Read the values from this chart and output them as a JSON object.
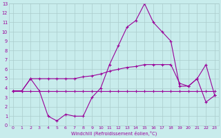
{
  "x": [
    0,
    1,
    2,
    3,
    4,
    5,
    6,
    7,
    8,
    9,
    10,
    11,
    12,
    13,
    14,
    15,
    16,
    17,
    18,
    19,
    20,
    21,
    22,
    23
  ],
  "line1": [
    3.7,
    3.7,
    5.0,
    3.7,
    1.0,
    0.5,
    1.2,
    1.0,
    1.0,
    3.0,
    4.0,
    6.5,
    8.5,
    10.5,
    11.2,
    13.0,
    11.0,
    10.0,
    9.0,
    4.2,
    4.2,
    5.0,
    2.5,
    3.2
  ],
  "line2": [
    3.7,
    3.7,
    5.0,
    5.0,
    5.0,
    5.0,
    5.0,
    5.0,
    5.2,
    5.3,
    5.5,
    5.8,
    6.0,
    6.2,
    6.3,
    6.5,
    6.5,
    6.5,
    6.5,
    4.5,
    4.2,
    5.0,
    6.5,
    3.2
  ],
  "line3": [
    3.7,
    3.7,
    3.7,
    3.7,
    3.7,
    3.7,
    3.7,
    3.7,
    3.7,
    3.7,
    3.7,
    3.7,
    3.7,
    3.7,
    3.7,
    3.7,
    3.7,
    3.7,
    3.7,
    3.7,
    3.7,
    3.7,
    3.7,
    3.7
  ],
  "line_color": "#990099",
  "bg_color": "#c8ecec",
  "grid_color": "#aacccc",
  "xlabel": "Windchill (Refroidissement éolien,°C)",
  "ylim": [
    0,
    13
  ],
  "xlim": [
    -0.5,
    23.5
  ],
  "yticks": [
    0,
    1,
    2,
    3,
    4,
    5,
    6,
    7,
    8,
    9,
    10,
    11,
    12,
    13
  ],
  "xticks": [
    0,
    1,
    2,
    3,
    4,
    5,
    6,
    7,
    8,
    9,
    10,
    11,
    12,
    13,
    14,
    15,
    16,
    17,
    18,
    19,
    20,
    21,
    22,
    23
  ]
}
